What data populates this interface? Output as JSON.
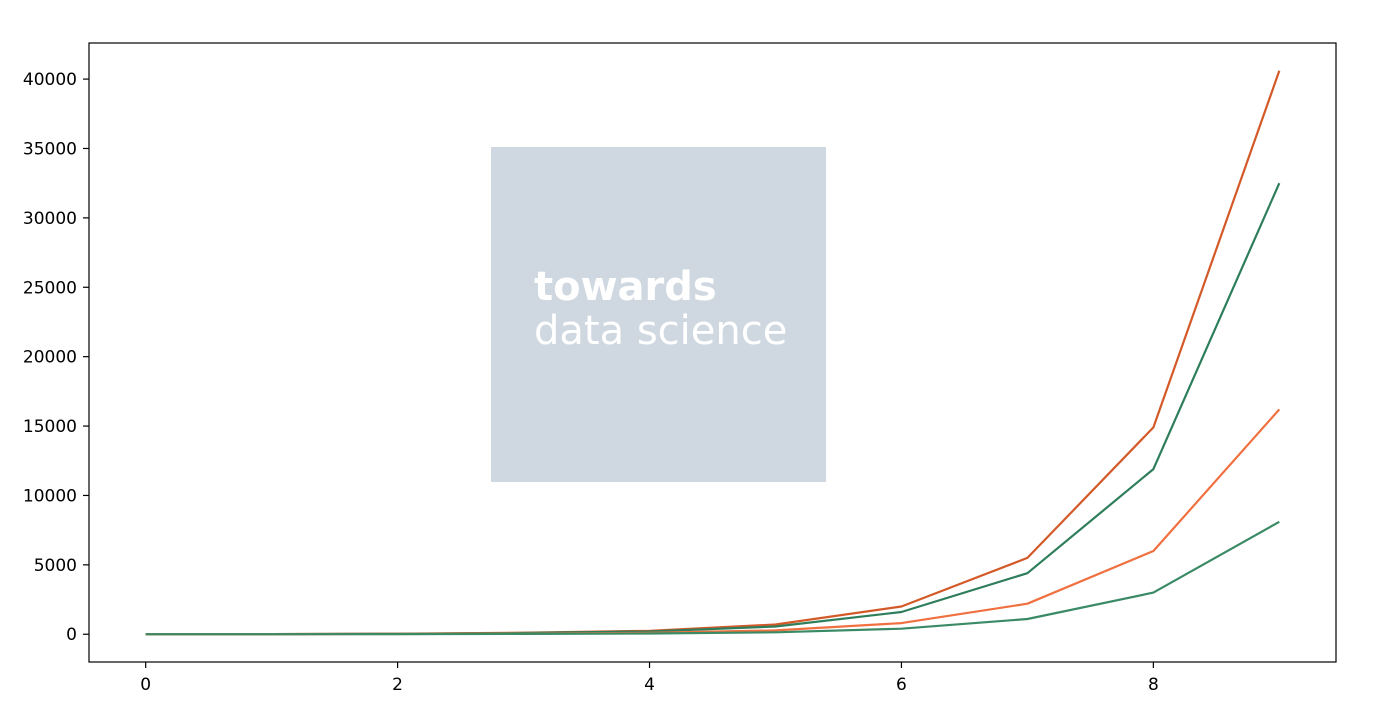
{
  "chart_data": {
    "type": "line",
    "title": "",
    "xlabel": "",
    "ylabel": "",
    "xlim": [
      -0.45,
      9.45
    ],
    "ylim": [
      -2000,
      42600
    ],
    "xticks": [
      0,
      2,
      4,
      6,
      8
    ],
    "yticks": [
      0,
      5000,
      10000,
      15000,
      20000,
      25000,
      30000,
      35000,
      40000
    ],
    "grid": false,
    "legend": "none",
    "x": [
      0,
      1,
      2,
      3,
      4,
      5,
      6,
      7,
      8,
      9
    ],
    "series": [
      {
        "color": "#d35a28",
        "values": [
          0,
          10,
          40,
          110,
          250,
          700,
          2000,
          5500,
          14900,
          40600
        ]
      },
      {
        "color": "#2e7d5b",
        "values": [
          0,
          8,
          32,
          90,
          200,
          560,
          1600,
          4400,
          11900,
          32500
        ]
      },
      {
        "color": "#f07040",
        "values": [
          0,
          4,
          16,
          45,
          100,
          280,
          800,
          2200,
          6000,
          16200
        ]
      },
      {
        "color": "#3a8a66",
        "values": [
          0,
          2,
          8,
          22,
          50,
          140,
          400,
          1100,
          3000,
          8100
        ]
      }
    ]
  },
  "watermark": {
    "line1": "towards",
    "line2": "data science",
    "box_color": "#cfd8e0"
  }
}
